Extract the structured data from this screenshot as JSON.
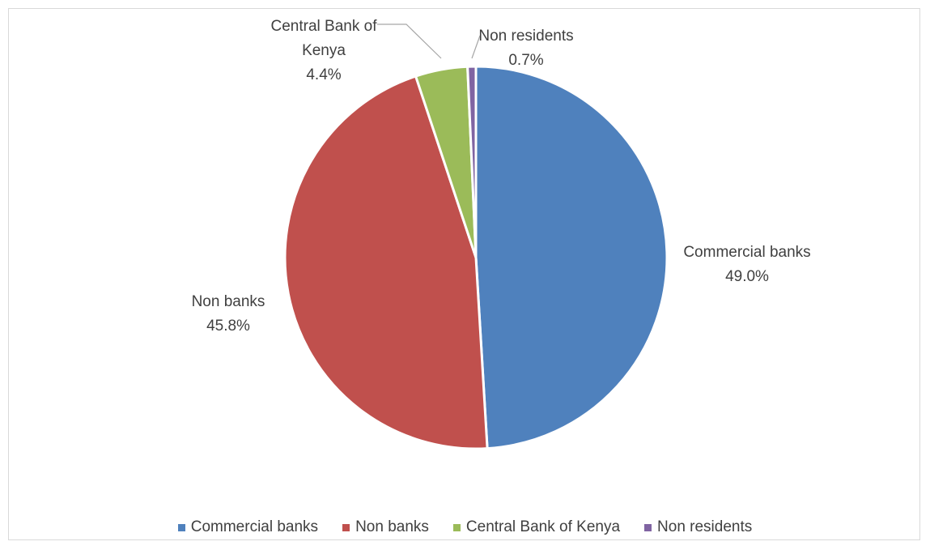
{
  "chart_data": {
    "type": "pie",
    "title": "",
    "start_angle_deg": 0,
    "direction": "clockwise",
    "slices": [
      {
        "label": "Commercial banks",
        "value": 49.0,
        "display": "49.0%",
        "color": "#4f81bd",
        "label_lines": [
          "Commercial banks"
        ]
      },
      {
        "label": "Non banks",
        "value": 45.8,
        "display": "45.8%",
        "color": "#c0504d",
        "label_lines": [
          "Non banks"
        ]
      },
      {
        "label": "Central Bank of Kenya",
        "value": 4.4,
        "display": "4.4%",
        "color": "#9bbb59",
        "label_lines": [
          "Central Bank of",
          "Kenya"
        ]
      },
      {
        "label": "Non  residents",
        "value": 0.7,
        "display": "0.7%",
        "color": "#8064a2",
        "label_lines": [
          "Non  residents"
        ]
      }
    ],
    "legend": {
      "position": "bottom",
      "entries": [
        "Commercial banks",
        "Non banks",
        "Central Bank of Kenya",
        "Non  residents"
      ]
    }
  }
}
